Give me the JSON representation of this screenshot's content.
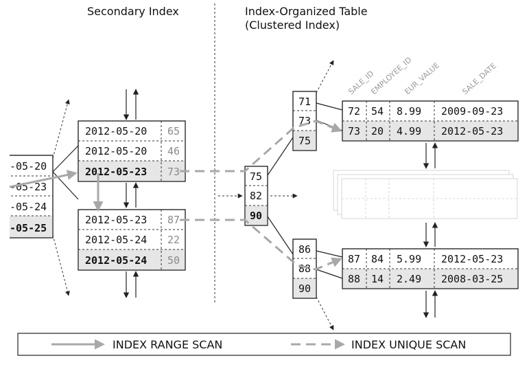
{
  "titles": {
    "secondary": "Secondary Index",
    "iot_line1": "Index-Organized Table",
    "iot_line2": "(Clustered Index)"
  },
  "left_partial": [
    "-05-20",
    "-05-23",
    "-05-24",
    "-05-25"
  ],
  "secondary_leaf_top": [
    {
      "date": "2012-05-20",
      "id": "65"
    },
    {
      "date": "2012-05-20",
      "id": "46"
    },
    {
      "date": "2012-05-23",
      "id": "73"
    }
  ],
  "secondary_leaf_bottom": [
    {
      "date": "2012-05-23",
      "id": "87"
    },
    {
      "date": "2012-05-24",
      "id": "22"
    },
    {
      "date": "2012-05-24",
      "id": "50"
    }
  ],
  "root_node": [
    "75",
    "82",
    "90"
  ],
  "branch_top": [
    "71",
    "73",
    "75"
  ],
  "branch_bottom": [
    "86",
    "88",
    "90"
  ],
  "column_headers": [
    "SALE_ID",
    "EMPLOYEE_ID",
    "EUR_VALUE",
    "SALE_DATE"
  ],
  "table_top": [
    [
      "72",
      "54",
      "8.99",
      "2009-09-23"
    ],
    [
      "73",
      "20",
      "4.99",
      "2012-05-23"
    ]
  ],
  "table_bottom": [
    [
      "87",
      "84",
      "5.99",
      "2012-05-23"
    ],
    [
      "88",
      "14",
      "2.49",
      "2008-03-25"
    ]
  ],
  "legend": {
    "range_scan": "INDEX RANGE SCAN",
    "unique_scan": "INDEX UNIQUE SCAN"
  },
  "colors": {
    "scan_arrow": "#a8a8a8",
    "shade": "#e6e6e6"
  }
}
